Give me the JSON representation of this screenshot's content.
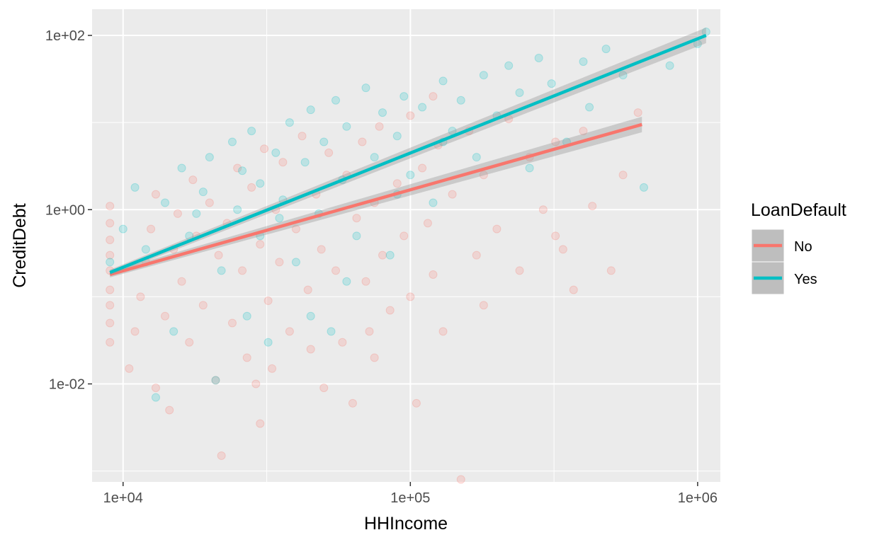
{
  "chart_data": {
    "type": "scatter",
    "title": "",
    "xlabel": "HHIncome",
    "ylabel": "CreditDebt",
    "x_scale": "log10",
    "y_scale": "log10",
    "xlim": [
      7800,
      1200000
    ],
    "ylim": [
      0.00075,
      200
    ],
    "x_ticks": [
      {
        "value": 10000,
        "label": "1e+04"
      },
      {
        "value": 100000,
        "label": "1e+05"
      },
      {
        "value": 1000000,
        "label": "1e+06"
      }
    ],
    "y_ticks": [
      {
        "value": 0.01,
        "label": "1e-02"
      },
      {
        "value": 1,
        "label": "1e+00"
      },
      {
        "value": 100,
        "label": "1e+02"
      }
    ],
    "grid": true,
    "legend": {
      "title": "LoanDefault",
      "position": "right",
      "entries": [
        {
          "label": "No",
          "color": "#F8766D"
        },
        {
          "label": "Yes",
          "color": "#00BFC4"
        }
      ]
    },
    "series": [
      {
        "name": "No",
        "color": "#F8766D",
        "fit_line": {
          "x": [
            9000,
            640000
          ],
          "y": [
            0.18,
            9.5
          ]
        },
        "points": [
          [
            9000,
            0.03
          ],
          [
            9000,
            0.05
          ],
          [
            9000,
            0.08
          ],
          [
            9000,
            0.12
          ],
          [
            9000,
            0.2
          ],
          [
            9000,
            0.3
          ],
          [
            9000,
            0.45
          ],
          [
            9000,
            0.7
          ],
          [
            9000,
            1.1
          ],
          [
            10500,
            0.015
          ],
          [
            11000,
            0.04
          ],
          [
            11500,
            0.1
          ],
          [
            12000,
            0.25
          ],
          [
            12500,
            0.6
          ],
          [
            13000,
            0.009
          ],
          [
            13000,
            1.5
          ],
          [
            14000,
            0.06
          ],
          [
            14500,
            0.005
          ],
          [
            15000,
            0.35
          ],
          [
            15500,
            0.9
          ],
          [
            16000,
            0.15
          ],
          [
            17000,
            0.03
          ],
          [
            17500,
            2.2
          ],
          [
            18000,
            0.5
          ],
          [
            19000,
            0.08
          ],
          [
            20000,
            1.2
          ],
          [
            21000,
            0.011
          ],
          [
            21500,
            0.3
          ],
          [
            22000,
            0.0015
          ],
          [
            23000,
            0.7
          ],
          [
            24000,
            0.05
          ],
          [
            25000,
            3.0
          ],
          [
            26000,
            0.2
          ],
          [
            27000,
            0.02
          ],
          [
            28000,
            1.8
          ],
          [
            29000,
            0.01
          ],
          [
            30000,
            0.4
          ],
          [
            30000,
            0.0035
          ],
          [
            31000,
            5.0
          ],
          [
            32000,
            0.09
          ],
          [
            33000,
            0.015
          ],
          [
            34000,
            1.0
          ],
          [
            35000,
            0.25
          ],
          [
            36000,
            3.5
          ],
          [
            38000,
            0.04
          ],
          [
            40000,
            0.6
          ],
          [
            42000,
            7.0
          ],
          [
            44000,
            0.12
          ],
          [
            45000,
            0.025
          ],
          [
            47000,
            1.5
          ],
          [
            49000,
            0.35
          ],
          [
            50000,
            0.009
          ],
          [
            52000,
            4.5
          ],
          [
            55000,
            0.2
          ],
          [
            58000,
            0.03
          ],
          [
            60000,
            2.5
          ],
          [
            63000,
            0.006
          ],
          [
            65000,
            0.8
          ],
          [
            68000,
            6.0
          ],
          [
            70000,
            0.15
          ],
          [
            72000,
            0.04
          ],
          [
            75000,
            1.2
          ],
          [
            78000,
            9.0
          ],
          [
            80000,
            0.3
          ],
          [
            85000,
            0.07
          ],
          [
            90000,
            2.0
          ],
          [
            95000,
            0.5
          ],
          [
            100000,
            12.0
          ],
          [
            100000,
            0.1
          ],
          [
            105000,
            0.006
          ],
          [
            110000,
            3.0
          ],
          [
            115000,
            0.7
          ],
          [
            120000,
            0.18
          ],
          [
            125000,
            5.5
          ],
          [
            130000,
            0.04
          ],
          [
            140000,
            1.5
          ],
          [
            150000,
            0.0008
          ],
          [
            160000,
            8.0
          ],
          [
            170000,
            0.3
          ],
          [
            180000,
            2.5
          ],
          [
            200000,
            0.6
          ],
          [
            220000,
            11.0
          ],
          [
            240000,
            0.2
          ],
          [
            260000,
            4.0
          ],
          [
            290000,
            1.0
          ],
          [
            320000,
            6.0
          ],
          [
            340000,
            0.35
          ],
          [
            370000,
            0.12
          ],
          [
            400000,
            8.0
          ],
          [
            430000,
            1.1
          ],
          [
            500000,
            0.2
          ],
          [
            550000,
            2.5
          ],
          [
            620000,
            13.0
          ],
          [
            320000,
            0.5
          ],
          [
            180000,
            0.08
          ],
          [
            120000,
            20.0
          ],
          [
            75000,
            0.02
          ]
        ]
      },
      {
        "name": "Yes",
        "color": "#00BFC4",
        "fit_line": {
          "x": [
            9000,
            1070000
          ],
          "y": [
            0.19,
            100
          ]
        },
        "points": [
          [
            9000,
            0.25
          ],
          [
            10000,
            0.6
          ],
          [
            11000,
            1.8
          ],
          [
            12000,
            0.35
          ],
          [
            13000,
            0.007
          ],
          [
            14000,
            1.2
          ],
          [
            15000,
            0.04
          ],
          [
            16000,
            3.0
          ],
          [
            17000,
            0.5
          ],
          [
            18000,
            0.9
          ],
          [
            20000,
            4.0
          ],
          [
            21000,
            0.011
          ],
          [
            22000,
            0.2
          ],
          [
            24000,
            6.0
          ],
          [
            25000,
            1.0
          ],
          [
            27000,
            0.06
          ],
          [
            28000,
            8.0
          ],
          [
            30000,
            2.0
          ],
          [
            32000,
            0.03
          ],
          [
            34000,
            4.5
          ],
          [
            36000,
            1.3
          ],
          [
            38000,
            10.0
          ],
          [
            40000,
            0.25
          ],
          [
            43000,
            3.5
          ],
          [
            45000,
            14.0
          ],
          [
            48000,
            0.9
          ],
          [
            50000,
            6.0
          ],
          [
            53000,
            0.04
          ],
          [
            55000,
            18.0
          ],
          [
            58000,
            2.2
          ],
          [
            60000,
            9.0
          ],
          [
            65000,
            0.5
          ],
          [
            70000,
            25.0
          ],
          [
            75000,
            4.0
          ],
          [
            80000,
            13.0
          ],
          [
            85000,
            0.3
          ],
          [
            90000,
            7.0
          ],
          [
            95000,
            20.0
          ],
          [
            100000,
            2.5
          ],
          [
            110000,
            15.0
          ],
          [
            120000,
            1.2
          ],
          [
            130000,
            30.0
          ],
          [
            140000,
            8.0
          ],
          [
            150000,
            18.0
          ],
          [
            170000,
            4.0
          ],
          [
            180000,
            35.0
          ],
          [
            200000,
            12.0
          ],
          [
            220000,
            45.0
          ],
          [
            240000,
            22.0
          ],
          [
            260000,
            3.0
          ],
          [
            280000,
            55.0
          ],
          [
            310000,
            28.0
          ],
          [
            350000,
            6.0
          ],
          [
            400000,
            50.0
          ],
          [
            420000,
            15.0
          ],
          [
            480000,
            70.0
          ],
          [
            550000,
            35.0
          ],
          [
            650000,
            1.8
          ],
          [
            800000,
            45.0
          ],
          [
            1000000,
            80.0
          ],
          [
            1070000,
            110.0
          ],
          [
            45000,
            0.06
          ],
          [
            30000,
            0.5
          ],
          [
            60000,
            0.15
          ],
          [
            90000,
            1.5
          ],
          [
            130000,
            6.0
          ],
          [
            19000,
            1.6
          ],
          [
            26000,
            2.8
          ],
          [
            35000,
            0.8
          ]
        ]
      }
    ]
  }
}
